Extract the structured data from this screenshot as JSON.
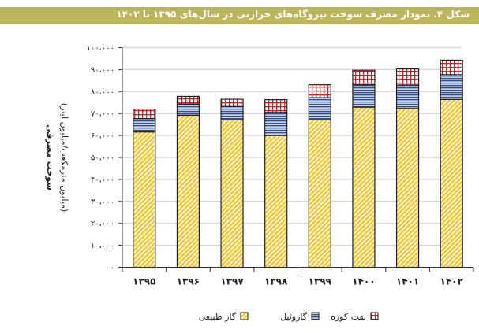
{
  "title": "شکل ۴. نمودار مصرف سوخت نیروگاه‌های حرارتی در سال‌های ۱۳۹۵ تا ۱۴۰۲",
  "chart_data": {
    "type": "bar",
    "stacked": true,
    "title": "شکل ۴. نمودار مصرف سوخت نیروگاه‌های حرارتی در سال‌های ۱۳۹۵ تا ۱۴۰۲",
    "ylabel": "سوخت مصرفی",
    "ylabel_sub": "(میلیون مترمکعب/میلیون لیتر)",
    "xlabel": "",
    "categories": [
      "۱۳۹۵",
      "۱۳۹۶",
      "۱۳۹۷",
      "۱۳۹۸",
      "۱۳۹۹",
      "۱۴۰۰",
      "۱۴۰۱",
      "۱۴۰۲"
    ],
    "ylim": [
      0,
      100000
    ],
    "yticks": [
      0,
      10000,
      20000,
      30000,
      40000,
      50000,
      60000,
      70000,
      80000,
      90000,
      100000
    ],
    "ytick_labels": [
      "۰",
      "۱۰،۰۰۰",
      "۲۰،۰۰۰",
      "۳۰،۰۰۰",
      "۴۰،۰۰۰",
      "۵۰،۰۰۰",
      "۶۰،۰۰۰",
      "۷۰،۰۰۰",
      "۸۰،۰۰۰",
      "۹۰،۰۰۰",
      "۱۰۰،۰۰۰"
    ],
    "grid": true,
    "legend_position": "bottom",
    "series": [
      {
        "name": "گاز طبیعی",
        "color": "#f2c12e",
        "pattern": "diagonal",
        "values": [
          61600,
          69200,
          67200,
          60000,
          67200,
          72900,
          72300,
          76400
        ]
      },
      {
        "name": "گازوئیل",
        "color": "#2f4f8f",
        "pattern": "horizontal",
        "values": [
          6100,
          5100,
          6000,
          10500,
          10000,
          10200,
          10700,
          11300
        ]
      },
      {
        "name": "نفت کوره",
        "color": "#c0262c",
        "pattern": "grid",
        "values": [
          4300,
          3500,
          3300,
          5800,
          5900,
          6600,
          7300,
          6600
        ]
      }
    ]
  }
}
